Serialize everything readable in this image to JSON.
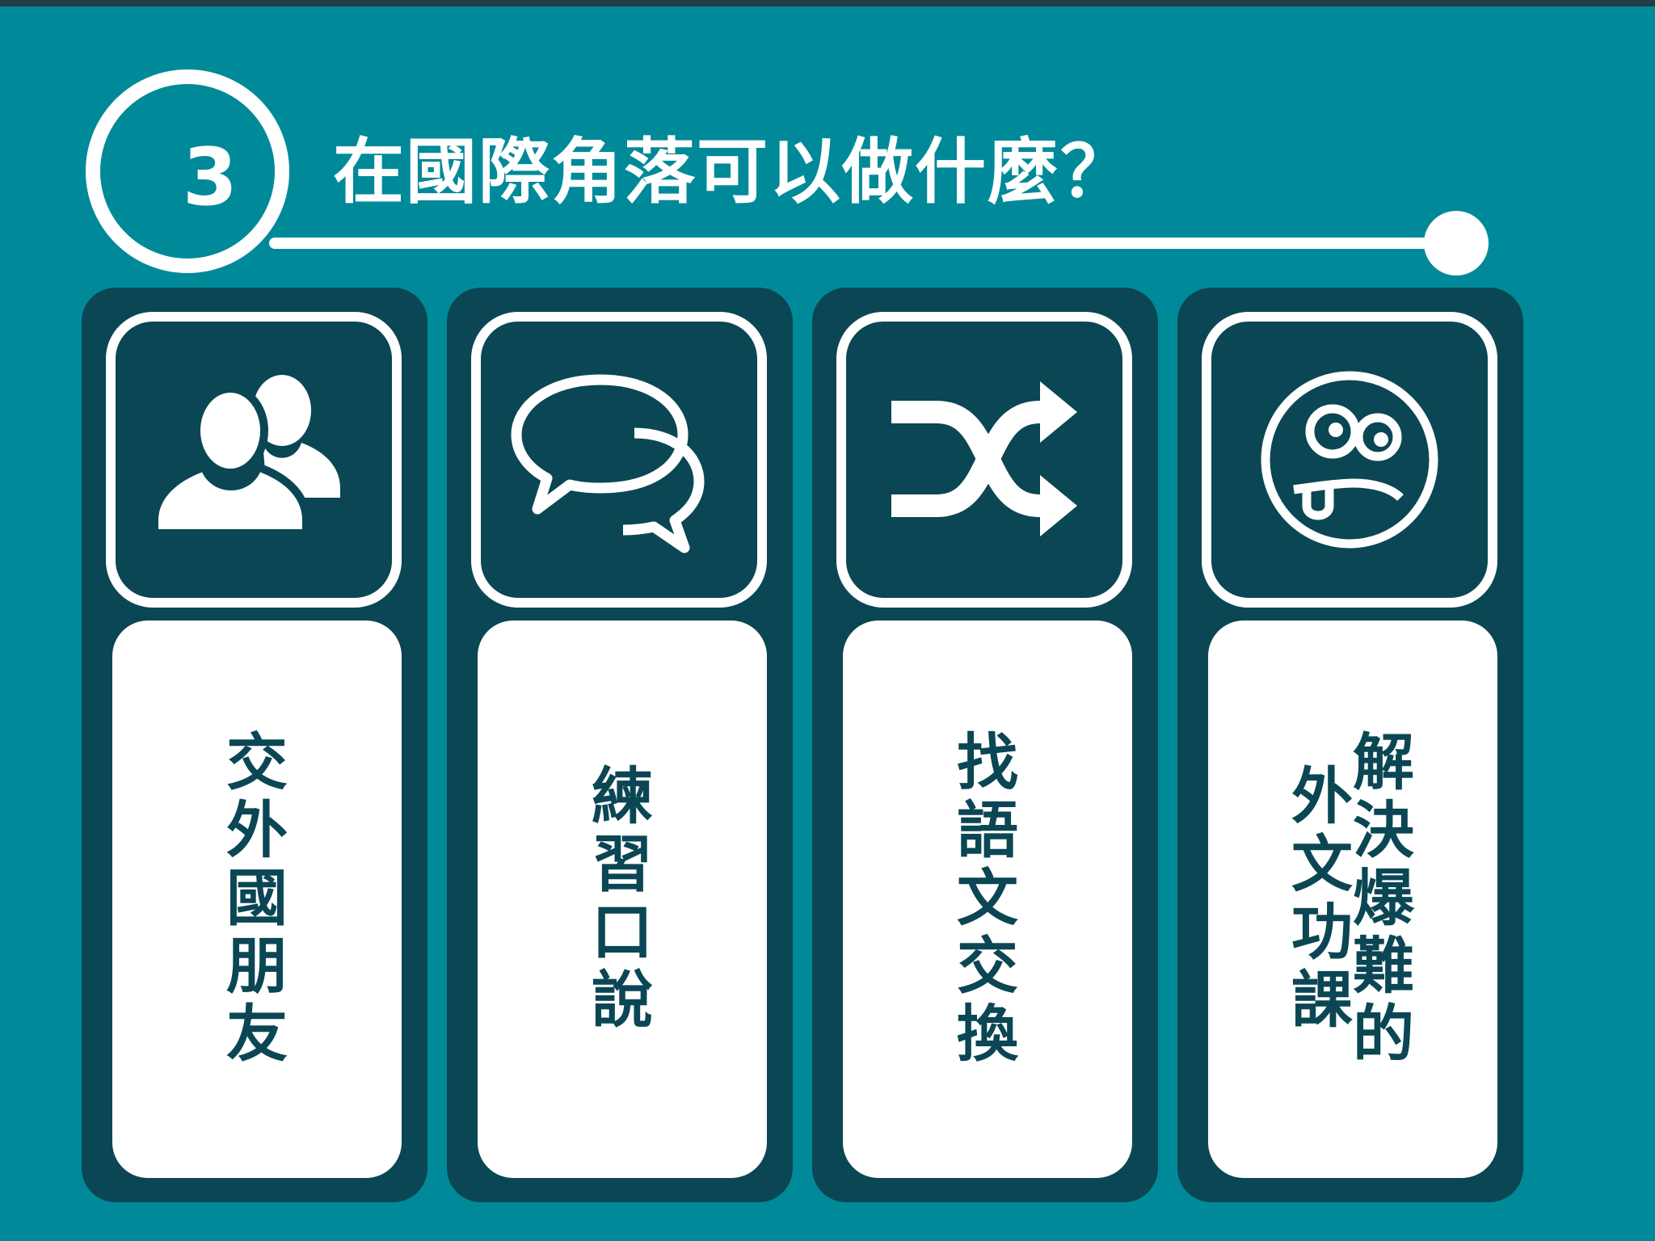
{
  "slide": {
    "step_number": "3",
    "title": "在國際角落可以做什麼？"
  },
  "cards": [
    {
      "icon": "users-icon",
      "label": "交外國朋友"
    },
    {
      "icon": "chat-bubbles-icon",
      "label": "練習口說"
    },
    {
      "icon": "shuffle-icon",
      "label": "找語文交換"
    },
    {
      "icon": "silly-face-icon",
      "label_line_1": "解決爆難的",
      "label_line_2": "外文功課"
    }
  ],
  "colors": {
    "background": "#008a99",
    "panel": "#0b4654",
    "text_light": "#ffffff",
    "text_dark": "#0b4654"
  }
}
